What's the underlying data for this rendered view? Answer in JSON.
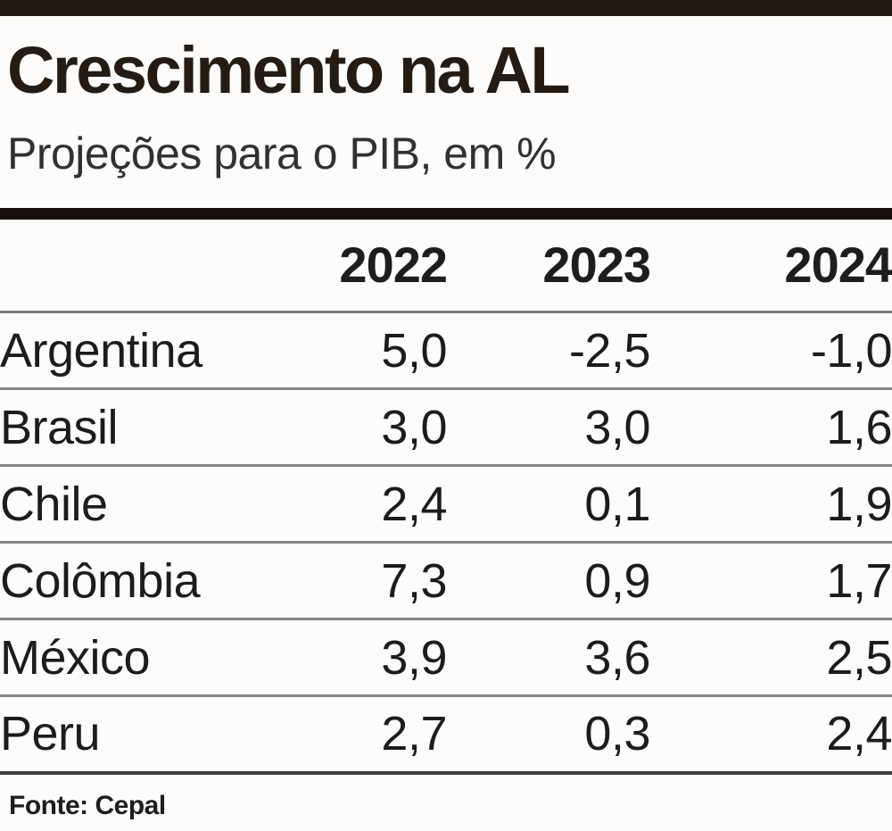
{
  "header": {
    "title": "Crescimento na AL",
    "subtitle": "Projeções para o PIB, em %"
  },
  "footer": {
    "source": "Fonte: Cepal"
  },
  "colors": {
    "top_bar": "#241a12",
    "title_text": "#241c14",
    "subtitle_text": "#313131",
    "table_text": "#1c1c1c",
    "thick_rule": "#170f0b",
    "row_separator": "#858585",
    "bottom_separator": "#3f3f3f",
    "background": "#fdfcfa"
  },
  "chart_data": {
    "type": "table",
    "title": "Crescimento na AL",
    "subtitle": "Projeções para o PIB, em %",
    "unit": "%",
    "value_note": "GDP growth projections, decimal comma format as displayed",
    "columns": [
      "2022",
      "2023",
      "2024"
    ],
    "rows": [
      {
        "label": "Argentina",
        "values": [
          "5,0",
          "-2,5",
          "-1,0"
        ]
      },
      {
        "label": "Brasil",
        "values": [
          "3,0",
          "3,0",
          "1,6"
        ]
      },
      {
        "label": "Chile",
        "values": [
          "2,4",
          "0,1",
          "1,9"
        ]
      },
      {
        "label": "Colômbia",
        "values": [
          "7,3",
          "0,9",
          "1,7"
        ]
      },
      {
        "label": "México",
        "values": [
          "3,9",
          "3,6",
          "2,5"
        ]
      },
      {
        "label": "Peru",
        "values": [
          "2,7",
          "0,3",
          "2,4"
        ]
      }
    ],
    "numeric_rows": [
      {
        "label": "Argentina",
        "values": [
          5.0,
          -2.5,
          -1.0
        ]
      },
      {
        "label": "Brasil",
        "values": [
          3.0,
          3.0,
          1.6
        ]
      },
      {
        "label": "Chile",
        "values": [
          2.4,
          0.1,
          1.9
        ]
      },
      {
        "label": "Colômbia",
        "values": [
          7.3,
          0.9,
          1.7
        ]
      },
      {
        "label": "México",
        "values": [
          3.9,
          3.6,
          2.5
        ]
      },
      {
        "label": "Peru",
        "values": [
          2.7,
          0.3,
          2.4
        ]
      }
    ],
    "source": "Fonte: Cepal"
  }
}
